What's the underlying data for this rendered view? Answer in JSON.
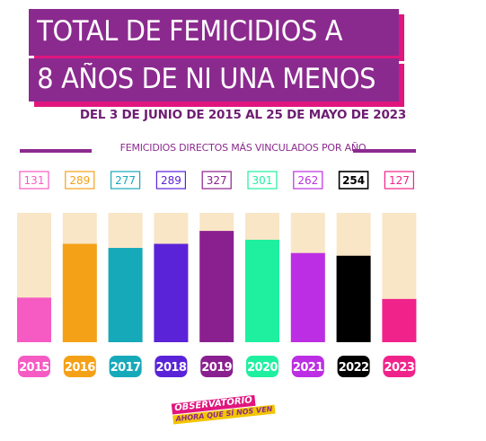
{
  "header": {
    "title_line1": "TOTAL DE FEMICIDIOS A",
    "title_line2": "8 AÑOS DE NI UNA MENOS",
    "subtitle": "DEL 3 DE JUNIO DE 2015 AL 25 DE MAYO DE 2023",
    "section_label": "FEMICIDIOS DIRECTOS MÁS VINCULADOS POR AÑO"
  },
  "chart_data": {
    "type": "bar",
    "title": "TOTAL DE FEMICIDIOS A 8 AÑOS DE NI UNA MENOS",
    "categories": [
      "2015",
      "2016",
      "2017",
      "2018",
      "2019",
      "2020",
      "2021",
      "2022",
      "2023"
    ],
    "values": [
      131,
      289,
      277,
      289,
      327,
      301,
      262,
      254,
      127
    ],
    "colors": [
      "#f55bc3",
      "#f5a117",
      "#16a9b9",
      "#5a23d8",
      "#8a2090",
      "#1ef0a0",
      "#bc2ee3",
      "#000000",
      "#f0238a"
    ],
    "background_color": "#f9e6c6",
    "xlabel": "",
    "ylabel": "",
    "ylim": [
      0,
      380
    ],
    "grid": false,
    "legend": "none"
  },
  "logo": {
    "top_text": "OBSERVATORIO",
    "bottom_text": "AHORA QUE SÍ NOS VEN"
  }
}
